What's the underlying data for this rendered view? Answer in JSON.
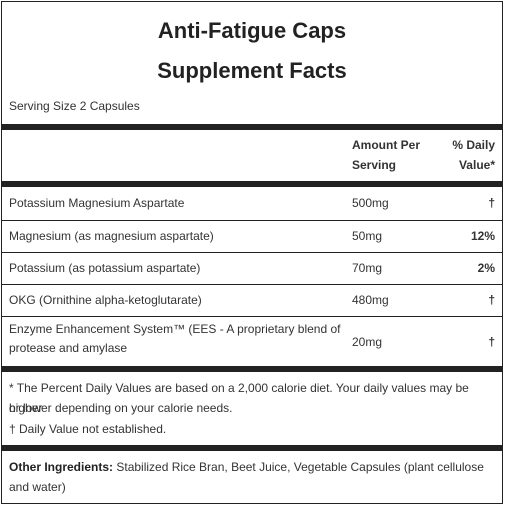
{
  "product_name": "Anti-Fatigue Caps",
  "panel_title": "Supplement Facts",
  "serving_size": "Serving Size 2 Capsules",
  "headers": {
    "amount_line1": "Amount Per",
    "amount_line2": "Serving",
    "dv_line1": "% Daily",
    "dv_line2": "Value*"
  },
  "rows": [
    {
      "name": "Potassium Magnesium Aspartate",
      "amount": "500mg",
      "dv": "†"
    },
    {
      "name": "Magnesium (as magnesium aspartate)",
      "amount": "50mg",
      "dv": "12%"
    },
    {
      "name": "Potassium (as potassium aspartate)",
      "amount": "70mg",
      "dv": "2%"
    },
    {
      "name": "OKG (Ornithine alpha-ketoglutarate)",
      "amount": "480mg",
      "dv": "†"
    },
    {
      "name_line1": "Enzyme Enhancement System™ (EES - A proprietary blend of",
      "name_line2": "protease and amylase",
      "amount": "20mg",
      "dv": "†"
    }
  ],
  "footnotes": {
    "line1": "* The Percent Daily Values are based on a 2,000 calorie diet. Your daily values may be higher",
    "line2": "or lower depending on your calorie needs.",
    "line3": "† Daily Value not established."
  },
  "other_ingredients": {
    "label": "Other Ingredients:",
    "text": " Stabilized Rice Bran, Beet Juice, Vegetable Capsules (plant cellulose and water)"
  }
}
